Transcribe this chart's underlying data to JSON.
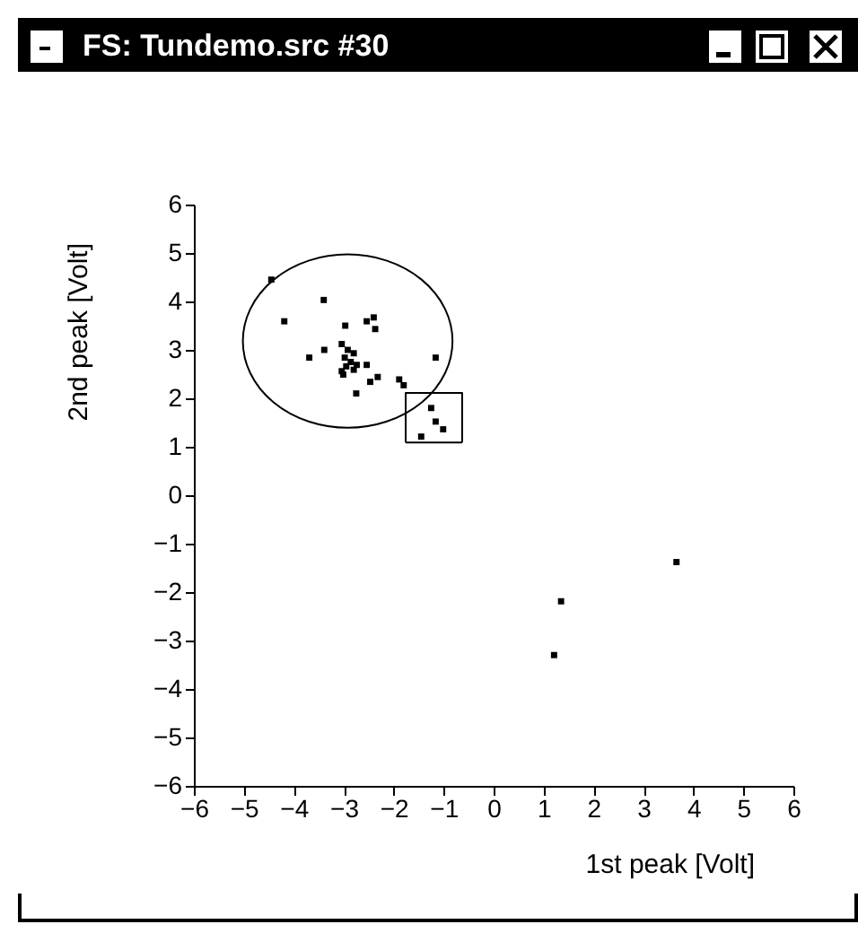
{
  "chart_data": {
    "type": "scatter",
    "title": "FS: Tundemo.src #30",
    "xlabel": "1st peak [Volt]",
    "ylabel": "2nd peak [Volt]",
    "xlim": [
      -6,
      6
    ],
    "ylim": [
      -6,
      6
    ],
    "xticks": [
      -6,
      -5,
      -4,
      -3,
      -2,
      -1,
      0,
      1,
      2,
      3,
      4,
      5,
      6
    ],
    "yticks": [
      -6,
      -5,
      -4,
      -3,
      -2,
      -1,
      0,
      1,
      2,
      3,
      4,
      5,
      6
    ],
    "grid": false,
    "marker": "square",
    "line_style": "solid",
    "series": [
      {
        "color": "#000000",
        "x": [
          -4.45,
          -4.19,
          -3.4,
          -3.69,
          -3.39,
          -2.97,
          -2.54,
          -2.37,
          -2.4,
          -3.04,
          -2.92,
          -2.8,
          -2.98,
          -2.86,
          -2.95,
          -2.74,
          -3.04,
          -3.01,
          -2.8,
          -2.54,
          -2.32,
          -2.47,
          -2.75,
          -1.89,
          -1.8,
          -1.16,
          -1.25,
          -1.16,
          -1.01,
          -1.45,
          3.66,
          1.35,
          1.21
        ],
        "values": [
          4.45,
          3.59,
          4.03,
          2.84,
          3.0,
          3.5,
          3.59,
          3.43,
          3.67,
          3.12,
          3.0,
          2.93,
          2.84,
          2.75,
          2.66,
          2.69,
          2.56,
          2.49,
          2.59,
          2.69,
          2.44,
          2.34,
          2.1,
          2.39,
          2.27,
          2.84,
          1.8,
          1.52,
          1.36,
          1.21,
          -1.38,
          -2.19,
          -3.3
        ]
      },
      {
        "type": "line",
        "marker": "none",
        "color": "#000000",
        "x": [
          -1.76,
          -1.76,
          -0.63,
          -0.63
        ],
        "values": [
          1.09,
          2.11,
          2.11,
          1.09
        ]
      },
      {
        "type": "line",
        "marker": "none",
        "color": "#000000",
        "x": [
          -1.76,
          -0.63
        ],
        "values": [
          1.09,
          1.09
        ]
      }
    ]
  }
}
